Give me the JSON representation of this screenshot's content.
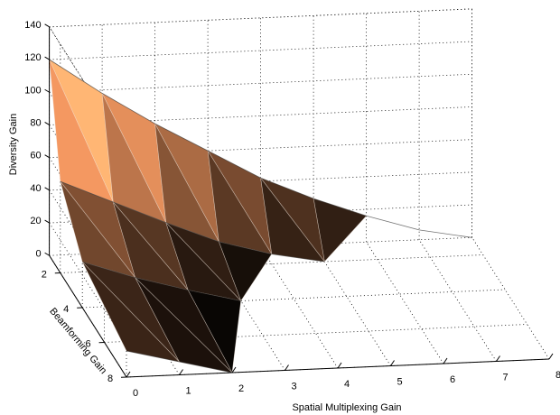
{
  "chart_data": {
    "type": "surface3d",
    "xlabel": "Spatial Multiplexing Gain",
    "ylabel": "Beamforming Gain",
    "zlabel": "Diversity Gain",
    "x_ticks": [
      "0",
      "1",
      "2",
      "3",
      "4",
      "5",
      "6",
      "7",
      "8"
    ],
    "y_ticks": [
      "2",
      "4",
      "6",
      "8"
    ],
    "z_ticks": [
      "0",
      "20",
      "40",
      "60",
      "80",
      "100",
      "120",
      "140"
    ],
    "xlim": [
      0,
      8
    ],
    "ylim": [
      1,
      8
    ],
    "zlim": [
      0,
      140
    ],
    "grid": true,
    "colormap": "copper",
    "surfaces": [
      {
        "beamforming_gain": [
          1,
          2,
          4,
          8
        ],
        "spatial_multiplexing_gain": [
          0,
          1,
          2,
          3,
          4,
          5,
          6,
          7,
          8
        ],
        "diversity_gain": [
          [
            120,
            98,
            78,
            60,
            42,
            28,
            16,
            6,
            0
          ],
          [
            56,
            42,
            28,
            15,
            6,
            0,
            null,
            null,
            null
          ],
          [
            28,
            17,
            8,
            0,
            null,
            null,
            null,
            null,
            null
          ],
          [
            16,
            8,
            0,
            null,
            null,
            null,
            null,
            null,
            null
          ]
        ]
      }
    ]
  }
}
